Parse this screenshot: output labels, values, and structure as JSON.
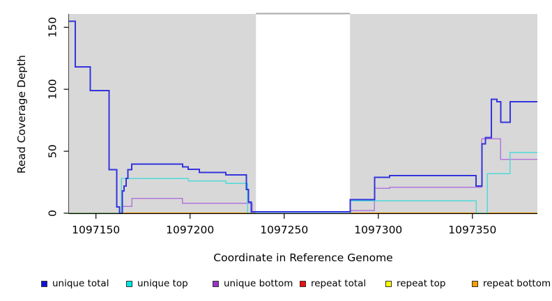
{
  "chart_data": {
    "type": "line",
    "step": "after",
    "title": "",
    "xlabel": "Coordinate in Reference Genome",
    "ylabel": "Read Coverage Depth",
    "xlim": [
      1097135.5,
      1097384.5
    ],
    "ylim": [
      0,
      160.8
    ],
    "x_ticks": [
      1097150,
      1097200,
      1097250,
      1097300,
      1097350
    ],
    "y_ticks": [
      0,
      50,
      100,
      150
    ],
    "grid": false,
    "plot_background": "#d8d8d8",
    "gap_region": {
      "from": 1097235,
      "to": 1097285,
      "color": "#ffffff",
      "top_border_color": "#a8a8a8"
    },
    "legend_position": "bottom",
    "legend": [
      {
        "label": "unique total",
        "color": "#1111dd"
      },
      {
        "label": "unique top",
        "color": "#00e5e5"
      },
      {
        "label": "unique bottom",
        "color": "#9933cc"
      },
      {
        "label": "repeat total",
        "color": "#ee1111"
      },
      {
        "label": "repeat top",
        "color": "#ffff00"
      },
      {
        "label": "repeat bottom",
        "color": "#ff9f00"
      }
    ],
    "series": [
      {
        "name": "repeat total",
        "color": "#ee1111",
        "width": 1.2,
        "layer": "under-gap",
        "points": [
          [
            1097135.5,
            0
          ]
        ]
      },
      {
        "name": "repeat top",
        "color": "#ffff00",
        "width": 1.2,
        "layer": "under-gap",
        "points": [
          [
            1097135.5,
            0
          ]
        ]
      },
      {
        "name": "repeat bottom",
        "color": "#ff9f00",
        "width": 1.8,
        "layer": "under-gap",
        "points": [
          [
            1097135.5,
            0
          ]
        ]
      },
      {
        "name": "unique bottom",
        "color": "#b277dd",
        "width": 1.5,
        "layer": "over-gap",
        "points": [
          [
            1097135.5,
            0
          ],
          [
            1097164,
            5.5
          ],
          [
            1097169,
            12
          ],
          [
            1097196,
            8
          ],
          [
            1097233,
            0
          ],
          [
            1097285,
            2
          ],
          [
            1097298,
            20
          ],
          [
            1097306,
            21
          ],
          [
            1097355,
            60
          ],
          [
            1097365,
            43.5
          ]
        ]
      },
      {
        "name": "unique top",
        "color": "#4fd9d9",
        "width": 1.5,
        "layer": "over-gap",
        "points": [
          [
            1097135.5,
            0
          ],
          [
            1097163.5,
            28
          ],
          [
            1097199,
            26
          ],
          [
            1097219,
            24
          ],
          [
            1097230.5,
            0
          ],
          [
            1097285,
            10
          ],
          [
            1097352,
            0
          ],
          [
            1097358,
            32
          ],
          [
            1097370,
            49
          ]
        ]
      },
      {
        "name": "unique total",
        "color": "#3333dd",
        "width": 2.0,
        "layer": "over-gap",
        "points": [
          [
            1097135.5,
            155
          ],
          [
            1097139,
            118
          ],
          [
            1097147,
            99
          ],
          [
            1097157,
            35
          ],
          [
            1097161,
            5
          ],
          [
            1097162.5,
            0
          ],
          [
            1097164,
            18
          ],
          [
            1097165,
            22
          ],
          [
            1097166,
            28
          ],
          [
            1097167,
            35
          ],
          [
            1097169,
            39.5
          ],
          [
            1097196,
            37.5
          ],
          [
            1097199,
            35.5
          ],
          [
            1097205,
            33
          ],
          [
            1097219,
            31
          ],
          [
            1097230,
            19
          ],
          [
            1097231,
            9
          ],
          [
            1097232.5,
            1
          ],
          [
            1097285,
            11
          ],
          [
            1097298,
            29
          ],
          [
            1097306,
            30.5
          ],
          [
            1097352,
            22
          ],
          [
            1097355,
            56
          ],
          [
            1097357,
            61
          ],
          [
            1097360,
            92
          ],
          [
            1097363,
            90
          ],
          [
            1097365,
            73.5
          ],
          [
            1097370,
            90
          ]
        ]
      }
    ],
    "baseline_overlap": {
      "color": "#8fd98f",
      "width": 1.5,
      "segments": [
        [
          1097135.5,
          1097163.5
        ],
        [
          1097352,
          1097358
        ]
      ]
    }
  }
}
